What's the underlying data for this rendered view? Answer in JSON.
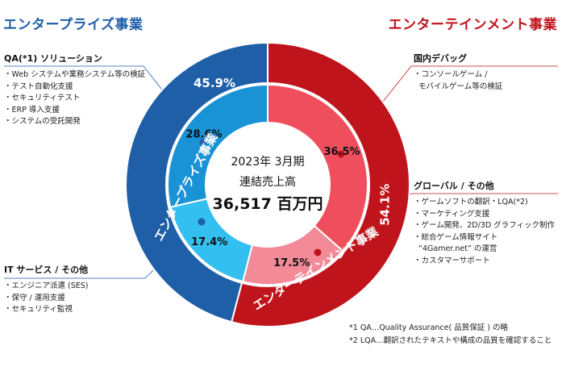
{
  "segments": {
    "left_title": "エンタープライズ事業",
    "right_title": "エンターテインメント事業"
  },
  "center": {
    "period": "2023年 3月期",
    "label": "連結売上高",
    "value": "36,517 百万円"
  },
  "groups": {
    "qa": {
      "title": "QA(*1) ソリューション",
      "items": [
        "・Web システムや業務システム等の検証",
        "・テスト自動化支援",
        "・セキュリティテスト",
        "・ERP 導入支援",
        "・システムの受託開発"
      ]
    },
    "it": {
      "title": "IT サービス / その他",
      "items": [
        "・エンジニア派遣 (SES)",
        "・保守 / 運用支援",
        "・セキュリティ監視"
      ]
    },
    "debug": {
      "title": "国内デバッグ",
      "items": [
        "・コンソールゲーム /",
        "  モバイルゲーム等の検証"
      ]
    },
    "global": {
      "title": "グローバル / その他",
      "items": [
        "・ゲームソフトの翻訳・LQA(*2)",
        "・マーケティング支援",
        "・ゲーム開発、2D/3D グラフィック制作",
        "・総合ゲーム情報サイト",
        "  “4Gamer.net” の運営",
        "・カスタマーサポート"
      ]
    }
  },
  "notes": [
    "*1 QA…Quality Assurance( 品質保証 ) の略",
    "*2 LQA…翻訳されたテキストや構成の品質を確認すること"
  ],
  "chart_data": {
    "type": "pie",
    "title": "2023年 3月期 連結売上高",
    "total": "36,517 百万円",
    "outer_ring": {
      "categories": [
        "エンターテインメント事業",
        "エンタープライズ事業"
      ],
      "values": [
        54.1,
        45.9
      ],
      "labels": [
        "54.1%",
        "45.9%"
      ],
      "colors": [
        "#c0141c",
        "#1f5fa8"
      ]
    },
    "inner_ring": {
      "categories": [
        "国内デバッグ",
        "グローバル / その他",
        "IT サービス / その他",
        "QA(*1) ソリューション"
      ],
      "values": [
        36.5,
        17.5,
        17.4,
        28.6
      ],
      "labels": [
        "36.5%",
        "17.5%",
        "17.4%",
        "28.6%"
      ],
      "colors": [
        "#ef4f5c",
        "#f28a98",
        "#33bff0",
        "#1993d6"
      ]
    }
  }
}
